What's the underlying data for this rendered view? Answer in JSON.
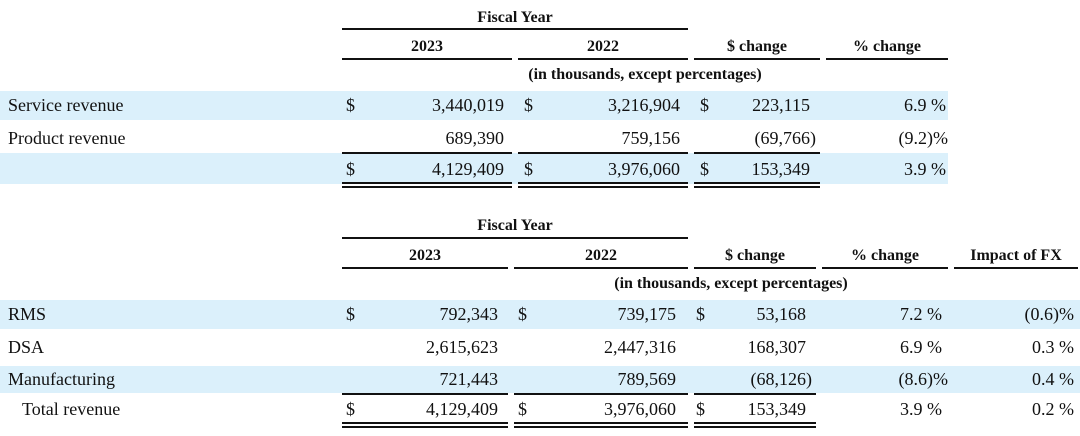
{
  "table1": {
    "group_header": "Fiscal Year",
    "columns": [
      "2023",
      "2022",
      "$ change",
      "% change"
    ],
    "subheader": "(in thousands, except percentages)",
    "rows": [
      {
        "label": "Service revenue",
        "cur1": "$",
        "v2023": "3,440,019",
        "cur2": "$",
        "v2022": "3,216,904",
        "cur3": "$",
        "change": "223,115",
        "pct": "6.9 %"
      },
      {
        "label": "Product revenue",
        "cur1": "",
        "v2023": "689,390",
        "cur2": "",
        "v2022": "759,156",
        "cur3": "",
        "change": "(69,766)",
        "pct": "(9.2)%"
      },
      {
        "label": "",
        "cur1": "$",
        "v2023": "4,129,409",
        "cur2": "$",
        "v2022": "3,976,060",
        "cur3": "$",
        "change": "153,349",
        "pct": "3.9 %"
      }
    ]
  },
  "table2": {
    "group_header": "Fiscal Year",
    "columns": [
      "2023",
      "2022",
      "$ change",
      "% change",
      "Impact of FX"
    ],
    "subheader": "(in thousands, except percentages)",
    "rows": [
      {
        "label": "RMS",
        "cur1": "$",
        "v2023": "792,343",
        "cur2": "$",
        "v2022": "739,175",
        "cur3": "$",
        "change": "53,168",
        "pct": "7.2 %",
        "fx": "(0.6)%"
      },
      {
        "label": "DSA",
        "cur1": "",
        "v2023": "2,615,623",
        "cur2": "",
        "v2022": "2,447,316",
        "cur3": "",
        "change": "168,307",
        "pct": "6.9 %",
        "fx": "0.3 %"
      },
      {
        "label": "Manufacturing",
        "cur1": "",
        "v2023": "721,443",
        "cur2": "",
        "v2022": "789,569",
        "cur3": "",
        "change": "(68,126)",
        "pct": "(8.6)%",
        "fx": "0.4 %"
      },
      {
        "label": "Total revenue",
        "cur1": "$",
        "v2023": "4,129,409",
        "cur2": "$",
        "v2022": "3,976,060",
        "cur3": "$",
        "change": "153,349",
        "pct": "3.9 %",
        "fx": "0.2 %"
      }
    ]
  }
}
